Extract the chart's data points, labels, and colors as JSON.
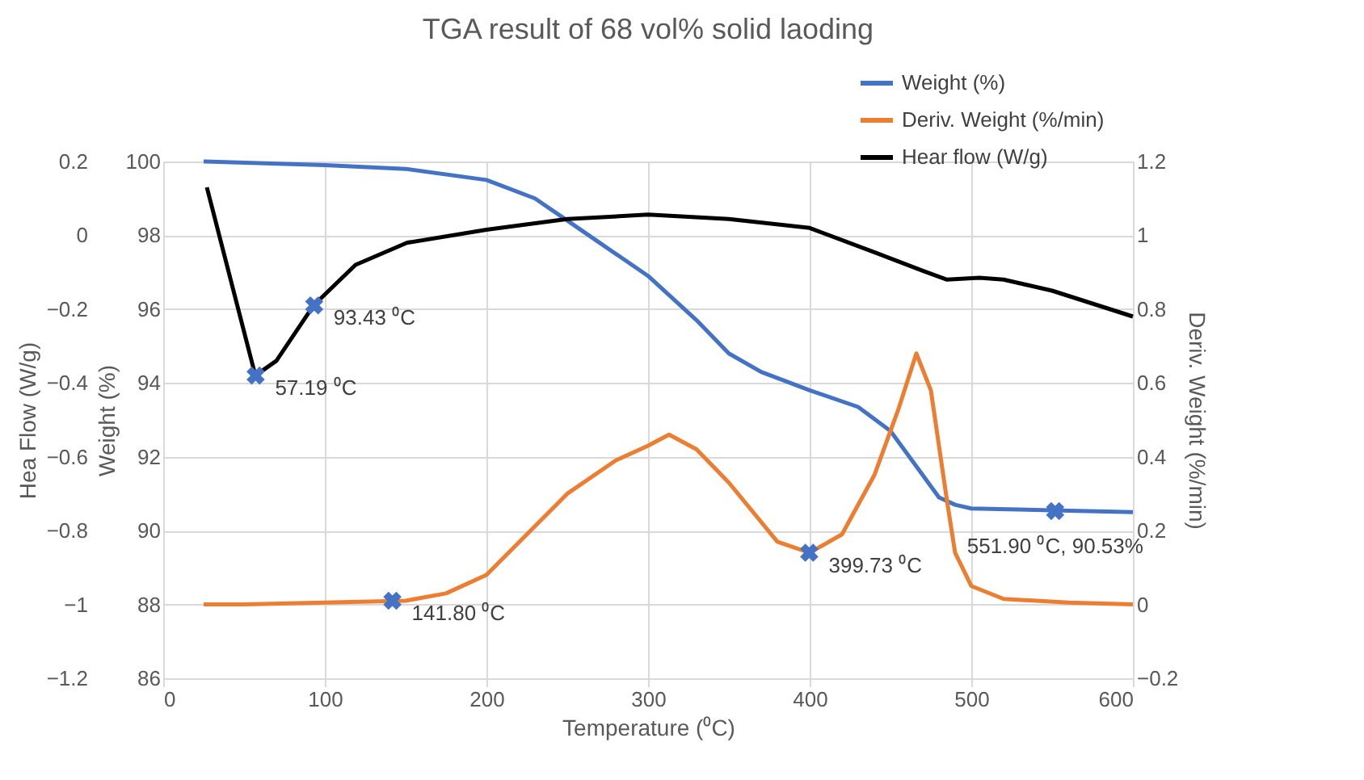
{
  "chart_data": {
    "type": "line",
    "title": "TGA result of 68 vol% solid laoding",
    "xlabel": "Temperature (⁰C)",
    "ylabel": "Weight (%)",
    "y2label": "Deriv. Weight (%/min)",
    "y3label": "Hea Flow (W/g)",
    "xlim": [
      0,
      600
    ],
    "xticks": [
      0,
      100,
      200,
      300,
      400,
      500,
      600
    ],
    "ylim": [
      86,
      100
    ],
    "yticks": [
      86,
      88,
      90,
      92,
      94,
      96,
      98,
      100
    ],
    "y2lim": [
      -0.2,
      1.2
    ],
    "y2ticks": [
      -0.2,
      0,
      0.2,
      0.4,
      0.6,
      0.8,
      1,
      1.2
    ],
    "y3lim": [
      -1.2,
      0.2
    ],
    "y3ticks": [
      -1.2,
      -1,
      -0.8,
      -0.6,
      -0.4,
      -0.2,
      0,
      0.2
    ],
    "annotations": [
      {
        "text": "57.19 ⁰C",
        "x": 57.19,
        "y": 94.2
      },
      {
        "text": "93.43 ⁰C",
        "x": 93.43,
        "y": 96.1
      },
      {
        "text": "141.80 ⁰C",
        "x": 141.8,
        "y": 88.1
      },
      {
        "text": "399.73 ⁰C",
        "x": 399.73,
        "y": 89.4
      },
      {
        "text": "551.90 ⁰C, 90.53%",
        "x": 551.9,
        "y": 90.53
      }
    ],
    "grid": true,
    "legend": "top right",
    "line_style": "solid",
    "marker": "none",
    "series": [
      {
        "name": "Weight (%)",
        "color": "#4472c4",
        "axis": "y",
        "x": [
          25,
          100,
          150,
          200,
          230,
          250,
          270,
          300,
          330,
          350,
          370,
          400,
          430,
          450,
          470,
          480,
          490,
          500,
          550,
          600
        ],
        "values": [
          100,
          99.9,
          99.8,
          99.5,
          99.0,
          98.4,
          97.8,
          96.9,
          95.7,
          94.8,
          94.3,
          93.8,
          93.35,
          92.7,
          91.5,
          90.9,
          90.7,
          90.6,
          90.55,
          90.5
        ]
      },
      {
        "name": "Deriv. Weight (%/min)",
        "color": "#ed7d31",
        "axis": "y2",
        "x": [
          25,
          50,
          100,
          150,
          175,
          200,
          225,
          250,
          280,
          300,
          313,
          330,
          350,
          380,
          400,
          420,
          440,
          455,
          466,
          475,
          485,
          490,
          500,
          520,
          560,
          600
        ],
        "values": [
          0.0,
          0.0,
          0.005,
          0.01,
          0.03,
          0.08,
          0.19,
          0.3,
          0.39,
          0.43,
          0.46,
          0.42,
          0.33,
          0.17,
          0.14,
          0.19,
          0.35,
          0.53,
          0.68,
          0.58,
          0.28,
          0.14,
          0.05,
          0.015,
          0.005,
          0.0
        ]
      },
      {
        "name": "Hear flow (W/g)",
        "color": "#000000",
        "axis": "y3",
        "x": [
          27,
          57,
          70,
          93,
          119,
          151,
          200,
          250,
          300,
          350,
          400,
          440,
          470,
          485,
          505,
          520,
          550,
          600
        ],
        "values": [
          0.13,
          -0.38,
          -0.34,
          -0.19,
          -0.08,
          -0.02,
          0.015,
          0.044,
          0.056,
          0.044,
          0.02,
          -0.046,
          -0.096,
          -0.12,
          -0.115,
          -0.12,
          -0.15,
          -0.22
        ]
      },
      {
        "type": "scatter",
        "color": "#4472c4",
        "marker": "cross",
        "axis": "y3",
        "x": [
          57.19,
          93.43
        ],
        "values": [
          -0.38,
          -0.19
        ]
      },
      {
        "type": "scatter",
        "color": "#4472c4",
        "marker": "cross",
        "axis": "y2",
        "x": [
          141.8,
          399.73
        ],
        "values": [
          0.01,
          0.14
        ]
      },
      {
        "type": "scatter",
        "color": "#4472c4",
        "marker": "cross",
        "axis": "y",
        "x": [
          551.9
        ],
        "values": [
          90.53
        ]
      }
    ]
  }
}
